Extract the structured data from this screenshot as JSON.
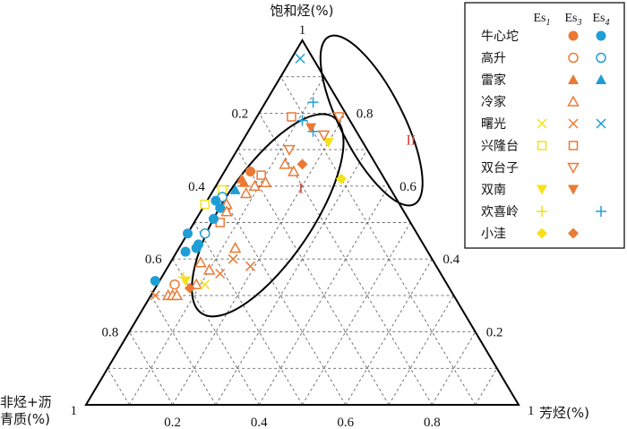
{
  "chart_data": {
    "type": "scatter",
    "subtype": "ternary",
    "axes": {
      "top": "饱和烃(%)",
      "right": "芳烃(%)",
      "left_line1": "非烃+沥",
      "left_line2": "青质(%)"
    },
    "ticks": {
      "labels": [
        "0.2",
        "0.4",
        "0.6",
        "0.8"
      ],
      "corner_label": "1",
      "values": [
        0.2,
        0.4,
        0.6,
        0.8
      ]
    },
    "grid": true,
    "grid_step": 0.1,
    "legend": {
      "placement": "right",
      "columns": [
        {
          "key": "Es1",
          "base": "Es",
          "sub": "1"
        },
        {
          "key": "Es3",
          "base": "Es",
          "sub": "3"
        },
        {
          "key": "Es4",
          "base": "Es",
          "sub": "4"
        }
      ],
      "rows": [
        {
          "name": "牛心坨",
          "marker": "circle-filled",
          "cols": [
            "Es3",
            "Es4"
          ]
        },
        {
          "name": "高升",
          "marker": "circle-open",
          "cols": [
            "Es3",
            "Es4"
          ]
        },
        {
          "name": "雷家",
          "marker": "triangle-filled",
          "cols": [
            "Es3",
            "Es4"
          ]
        },
        {
          "name": "冷家",
          "marker": "triangle-open",
          "cols": [
            "Es3"
          ]
        },
        {
          "name": "曙光",
          "marker": "x",
          "cols": [
            "Es1",
            "Es3",
            "Es4"
          ]
        },
        {
          "name": "兴隆台",
          "marker": "square-open",
          "cols": [
            "Es1",
            "Es3"
          ]
        },
        {
          "name": "双台子",
          "marker": "triangle-down-open",
          "cols": [
            "Es3"
          ]
        },
        {
          "name": "双南",
          "marker": "triangle-down-filled",
          "cols": [
            "Es1",
            "Es3"
          ]
        },
        {
          "name": "欢喜岭",
          "marker": "plus",
          "cols": [
            "Es1",
            "Es4"
          ]
        },
        {
          "name": "小洼",
          "marker": "diamond-filled",
          "cols": [
            "Es1",
            "Es3"
          ]
        }
      ]
    },
    "colors": {
      "Es1": "#f5e11a",
      "Es3": "#ea7a35",
      "Es4": "#1f9ed5"
    },
    "groups": [
      {
        "label": "I",
        "center": {
          "sat": 0.52,
          "aro": 0.16
        }
      },
      {
        "label": "II",
        "center": {
          "sat": 0.78,
          "aro": 0.27
        }
      }
    ],
    "points": [
      {
        "sat": 0.95,
        "aro": 0.02,
        "field": "曙光",
        "member": "Es4"
      },
      {
        "sat": 0.83,
        "aro": 0.11,
        "field": "欢喜岭",
        "member": "Es4"
      },
      {
        "sat": 0.78,
        "aro": 0.11,
        "field": "欢喜岭",
        "member": "Es4"
      },
      {
        "sat": 0.75,
        "aro": 0.15,
        "field": "欢喜岭",
        "member": "Es4"
      },
      {
        "sat": 0.79,
        "aro": 0.08,
        "field": "兴隆台",
        "member": "Es3"
      },
      {
        "sat": 0.79,
        "aro": 0.19,
        "field": "双台子",
        "member": "Es3"
      },
      {
        "sat": 0.76,
        "aro": 0.14,
        "field": "双南",
        "member": "Es3"
      },
      {
        "sat": 0.72,
        "aro": 0.2,
        "field": "双南",
        "member": "Es1"
      },
      {
        "sat": 0.74,
        "aro": 0.18,
        "field": "双台子",
        "member": "Es3"
      },
      {
        "sat": 0.7,
        "aro": 0.12,
        "field": "双台子",
        "member": "Es3"
      },
      {
        "sat": 0.66,
        "aro": 0.13,
        "field": "冷家",
        "member": "Es3"
      },
      {
        "sat": 0.66,
        "aro": 0.17,
        "field": "小洼",
        "member": "Es3"
      },
      {
        "sat": 0.64,
        "aro": 0.16,
        "field": "冷家",
        "member": "Es3"
      },
      {
        "sat": 0.62,
        "aro": 0.28,
        "field": "小洼",
        "member": "Es1"
      },
      {
        "sat": 0.64,
        "aro": 0.06,
        "field": "牛心坨",
        "member": "Es3"
      },
      {
        "sat": 0.63,
        "aro": 0.09,
        "field": "兴隆台",
        "member": "Es3"
      },
      {
        "sat": 0.62,
        "aro": 0.05,
        "field": "雷家",
        "member": "Es3"
      },
      {
        "sat": 0.61,
        "aro": 0.06,
        "field": "雷家",
        "member": "Es3"
      },
      {
        "sat": 0.6,
        "aro": 0.09,
        "field": "冷家",
        "member": "Es3"
      },
      {
        "sat": 0.61,
        "aro": 0.11,
        "field": "冷家",
        "member": "Es3"
      },
      {
        "sat": 0.59,
        "aro": 0.05,
        "field": "雷家",
        "member": "Es4"
      },
      {
        "sat": 0.58,
        "aro": 0.08,
        "field": "冷家",
        "member": "Es3"
      },
      {
        "sat": 0.59,
        "aro": 0.02,
        "field": "兴隆台",
        "member": "Es1"
      },
      {
        "sat": 0.57,
        "aro": 0.03,
        "field": "高升",
        "member": "Es4"
      },
      {
        "sat": 0.56,
        "aro": 0.02,
        "field": "牛心坨",
        "member": "Es4"
      },
      {
        "sat": 0.55,
        "aro": 0.05,
        "field": "冷家",
        "member": "Es3"
      },
      {
        "sat": 0.55,
        "aro": 0.0,
        "field": "兴隆台",
        "member": "Es1"
      },
      {
        "sat": 0.54,
        "aro": 0.04,
        "field": "牛心坨",
        "member": "Es4"
      },
      {
        "sat": 0.53,
        "aro": 0.06,
        "field": "冷家",
        "member": "Es3"
      },
      {
        "sat": 0.5,
        "aro": 0.06,
        "field": "兴隆台",
        "member": "Es3"
      },
      {
        "sat": 0.51,
        "aro": 0.04,
        "field": "牛心坨",
        "member": "Es4"
      },
      {
        "sat": 0.47,
        "aro": 0.04,
        "field": "高升",
        "member": "Es4"
      },
      {
        "sat": 0.47,
        "aro": 0.0,
        "field": "牛心坨",
        "member": "Es4"
      },
      {
        "sat": 0.44,
        "aro": 0.04,
        "field": "牛心坨",
        "member": "Es4"
      },
      {
        "sat": 0.43,
        "aro": 0.04,
        "field": "牛心坨",
        "member": "Es4"
      },
      {
        "sat": 0.42,
        "aro": 0.02,
        "field": "牛心坨",
        "member": "Es4"
      },
      {
        "sat": 0.43,
        "aro": 0.13,
        "field": "冷家",
        "member": "Es3"
      },
      {
        "sat": 0.4,
        "aro": 0.14,
        "field": "曙光",
        "member": "Es3"
      },
      {
        "sat": 0.38,
        "aro": 0.19,
        "field": "曙光",
        "member": "Es3"
      },
      {
        "sat": 0.39,
        "aro": 0.07,
        "field": "冷家",
        "member": "Es3"
      },
      {
        "sat": 0.37,
        "aro": 0.1,
        "field": "冷家",
        "member": "Es3"
      },
      {
        "sat": 0.36,
        "aro": 0.13,
        "field": "曙光",
        "member": "Es3"
      },
      {
        "sat": 0.35,
        "aro": 0.05,
        "field": "欢喜岭",
        "member": "Es1"
      },
      {
        "sat": 0.34,
        "aro": 0.06,
        "field": "双南",
        "member": "Es1"
      },
      {
        "sat": 0.33,
        "aro": 0.09,
        "field": "冷家",
        "member": "Es3"
      },
      {
        "sat": 0.33,
        "aro": 0.11,
        "field": "曙光",
        "member": "Es1"
      },
      {
        "sat": 0.33,
        "aro": 0.04,
        "field": "高升",
        "member": "Es3"
      },
      {
        "sat": 0.32,
        "aro": 0.08,
        "field": "小洼",
        "member": "Es3"
      },
      {
        "sat": 0.3,
        "aro": 0.04,
        "field": "冷家",
        "member": "Es3"
      },
      {
        "sat": 0.3,
        "aro": 0.05,
        "field": "冷家",
        "member": "Es3"
      },
      {
        "sat": 0.3,
        "aro": 0.06,
        "field": "冷家",
        "member": "Es3"
      },
      {
        "sat": 0.3,
        "aro": 0.01,
        "field": "曙光",
        "member": "Es3"
      },
      {
        "sat": 0.34,
        "aro": -0.01,
        "field": "牛心坨",
        "member": "Es4"
      }
    ]
  }
}
